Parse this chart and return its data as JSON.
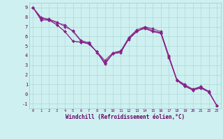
{
  "xlabel": "Windchill (Refroidissement éolien,°C)",
  "bg_color": "#cff0f0",
  "grid_color": "#aad8d8",
  "line_color": "#882288",
  "xlim": [
    -0.5,
    23.5
  ],
  "ylim": [
    -1.5,
    9.5
  ],
  "xticks": [
    0,
    1,
    2,
    3,
    4,
    5,
    6,
    7,
    8,
    9,
    10,
    11,
    12,
    13,
    14,
    15,
    16,
    17,
    18,
    19,
    20,
    21,
    22,
    23
  ],
  "yticks": [
    -1,
    0,
    1,
    2,
    3,
    4,
    5,
    6,
    7,
    8,
    9
  ],
  "series": [
    [
      9.0,
      7.8,
      7.7,
      7.2,
      6.5,
      5.5,
      5.4,
      5.4,
      4.3,
      3.2,
      4.2,
      4.3,
      5.8,
      6.5,
      7.0,
      6.8,
      6.5,
      4.0,
      1.5,
      1.0,
      0.5,
      0.8,
      0.2,
      -1.2
    ],
    [
      9.0,
      7.7,
      7.7,
      7.2,
      6.5,
      5.5,
      5.4,
      5.2,
      4.4,
      3.3,
      4.2,
      4.5,
      5.9,
      6.7,
      7.0,
      6.6,
      6.4,
      3.8,
      1.5,
      0.8,
      0.5,
      0.7,
      0.2,
      -1.2
    ],
    [
      9.0,
      8.0,
      7.75,
      7.4,
      7.2,
      6.5,
      5.5,
      5.2,
      4.4,
      3.5,
      4.3,
      4.5,
      5.8,
      6.6,
      6.8,
      6.5,
      6.4,
      3.9,
      1.5,
      0.9,
      0.4,
      0.7,
      0.3,
      -1.2
    ],
    [
      9.0,
      7.9,
      7.8,
      7.5,
      7.0,
      6.6,
      5.6,
      5.3,
      4.4,
      3.1,
      4.2,
      4.4,
      5.7,
      6.5,
      6.9,
      6.5,
      6.3,
      3.8,
      1.4,
      0.8,
      0.4,
      0.6,
      0.2,
      -1.2
    ]
  ]
}
